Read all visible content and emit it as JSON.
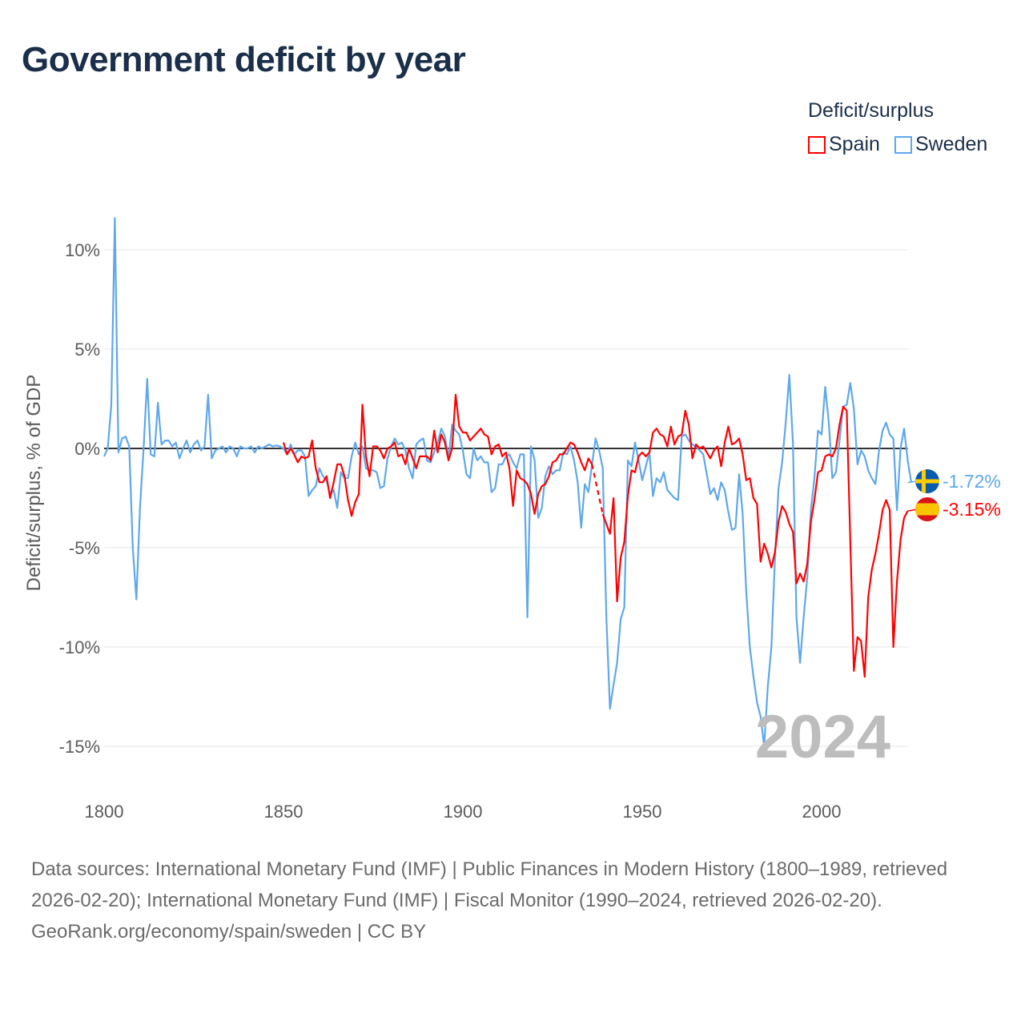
{
  "title": "Government deficit by year",
  "legend": {
    "title": "Deficit/surplus",
    "items": [
      {
        "name": "Spain",
        "color": "#ff0000"
      },
      {
        "name": "Sweden",
        "color": "#5ea8eb"
      }
    ]
  },
  "footer": {
    "sources": "Data sources: International Monetary Fund (IMF) | Public Finances in Modern History (1800–1989, retrieved 2026-02-20); International Monetary Fund (IMF) | Fiscal Monitor (1990–2024, retrieved 2026-02-20).",
    "attribution": "GeoRank.org/economy/spain/sweden | CC BY"
  },
  "chart_data": {
    "type": "line",
    "title": "Government deficit by year",
    "ylabel": "Deficit/surplus, % of GDP",
    "xlabel": "",
    "xlim": [
      1800,
      2024
    ],
    "ylim": [
      -17,
      12
    ],
    "x_ticks": [
      1800,
      1850,
      1900,
      1950,
      2000
    ],
    "x_tick_labels": [
      "1800",
      "1850",
      "1900",
      "1950",
      "2000"
    ],
    "y_ticks": [
      10,
      5,
      0,
      -5,
      -10,
      -15
    ],
    "y_tick_labels": [
      "10%",
      "5%",
      "0%",
      "-5%",
      "-10%",
      "-15%"
    ],
    "grid": true,
    "current_year": "2024",
    "legend_position": "top-right",
    "series": [
      {
        "name": "Sweden",
        "color": "#5ea8eb",
        "end_label": "-1.72%",
        "flag": "sweden-flag",
        "start_year": 1800,
        "values": [
          -0.4,
          0,
          2.2,
          11.6,
          -0.2,
          0.5,
          0.6,
          0.1,
          -5,
          -7.6,
          -3,
          0,
          3.5,
          -0.3,
          -0.4,
          2.3,
          0.2,
          0.4,
          0.4,
          0.1,
          0.3,
          -0.5,
          0,
          0.4,
          -0.2,
          0.2,
          0.4,
          -0.1,
          0.1,
          2.7,
          -0.5,
          -0.1,
          0,
          0.1,
          -0.2,
          0.1,
          0,
          -0.4,
          0.1,
          0,
          0,
          0.1,
          -0.2,
          0.1,
          0,
          0.1,
          0.2,
          0.1,
          0.15,
          0.1,
          0,
          -0.3,
          0.2,
          -0.3,
          -0.1,
          -0.1,
          -0.4,
          -2.4,
          -2.1,
          -1.9,
          -1.0,
          -1.4,
          -1.6,
          -2.3,
          -2.1,
          -3.0,
          -1.2,
          -1.5,
          -1.5,
          -0.4,
          0.3,
          -0.3,
          0.1,
          -1.0,
          -1.1,
          -1.1,
          -1.2,
          -2.0,
          -1.9,
          -0.5,
          0.1,
          0.5,
          0.2,
          0.3,
          -0.1,
          -1.0,
          -1.5,
          0.2,
          0.4,
          0.5,
          -0.6,
          -0.7,
          -0.2,
          0.3,
          1.0,
          0.6,
          -0.5,
          1.2,
          0.9,
          0.7,
          -0.1,
          -1.3,
          -1.5,
          0,
          -0.6,
          -0.4,
          -0.7,
          -0.7,
          -2.2,
          -2.0,
          -0.8,
          -0.8,
          -0.4,
          -0.3,
          -0.7,
          -1.0,
          -0.3,
          -0.3,
          -8.5,
          0.1,
          -0.6,
          -3.5,
          -3.0,
          -1.4,
          -0.9,
          -1.3,
          -1.1,
          -1.1,
          -0.2,
          -0.3,
          0.1,
          -0.6,
          -1.7,
          -4.0,
          -1.8,
          -2.2,
          -0.8,
          0.5,
          -0.1,
          -1.0,
          -8.5,
          -13.1,
          -11.9,
          -10.8,
          -8.6,
          -8.0,
          -0.6,
          -0.9,
          0.3,
          -0.6,
          -1.6,
          -0.9,
          -0.2,
          -2.4,
          -1.5,
          -1.7,
          -1.2,
          -2.1,
          -2.3,
          -2.5,
          -2.6,
          0.6,
          0.7,
          0.4,
          0.2,
          0.1,
          -0.1,
          -0.3,
          -1.3,
          -2.3,
          -2.0,
          -2.6,
          -1.7,
          -2.1,
          -3.2,
          -4.1,
          -4.0,
          -1.3,
          -3.3,
          -7.2,
          -10.0,
          -11.5,
          -12.8,
          -13.5,
          -15.0,
          -12.0,
          -10.0,
          -5.5,
          -2.0,
          -0.7,
          1.3,
          3.7,
          0.3,
          -8.5,
          -10.8,
          -8.5,
          -6.5,
          -3.1,
          -1.5,
          0.9,
          0.7,
          3.1,
          1.3,
          -1.5,
          -1.2,
          0.4,
          2.1,
          2.2,
          3.3,
          2.0,
          -0.8,
          -0.1,
          -0.4,
          -1.1,
          -1.5,
          -1.8,
          -0.1,
          0.9,
          1.3,
          0.7,
          0.5,
          -3.1,
          0,
          1.0,
          -0.6,
          -1.72
        ]
      },
      {
        "name": "Spain",
        "color": "#ff0000",
        "end_label": "-3.15%",
        "flag": "spain-flag",
        "start_year": 1850,
        "missing_years_dashed": [
          1937,
          1938
        ],
        "values": [
          0.3,
          -0.3,
          0,
          -0.3,
          -0.7,
          -0.4,
          -0.5,
          -0.4,
          0.4,
          -1.0,
          -1.7,
          -1.7,
          -1.4,
          -2.5,
          -1.7,
          -0.8,
          -0.8,
          -1.4,
          -2.6,
          -3.4,
          -2.7,
          -2.3,
          2.2,
          -0.4,
          -1.4,
          0.1,
          0.1,
          -0.1,
          -0.5,
          0,
          0.1,
          0.3,
          -0.4,
          -0.3,
          -0.8,
          0,
          -0.5,
          -1.0,
          -0.4,
          -0.4,
          -0.4,
          -0.6,
          0.9,
          -0.2,
          0.7,
          0.3,
          -0.6,
          0,
          2.7,
          1.1,
          0.8,
          0.8,
          0.4,
          0.6,
          0.8,
          1.0,
          0.7,
          0.6,
          -0.3,
          0.1,
          0.2,
          -0.4,
          -0.2,
          -1.0,
          -2.9,
          -1.1,
          -1.5,
          -1.6,
          -1.8,
          -2.3,
          -3.3,
          -2.3,
          -1.9,
          -1.8,
          -1.4,
          -0.7,
          -0.6,
          -0.3,
          -0.3,
          0,
          0.3,
          0.2,
          -0.2,
          -0.7,
          -1.1,
          -0.5,
          -0.8,
          null,
          null,
          -3.3,
          -3.8,
          -4.3,
          -2.5,
          -7.7,
          -5.5,
          -4.7,
          -2.4,
          -1.1,
          -1.2,
          -0.4,
          -0.2,
          -0.4,
          -0.2,
          0.8,
          1.0,
          0.7,
          0.6,
          0.1,
          1.1,
          0.2,
          0.6,
          0.7,
          1.9,
          1.2,
          -0.5,
          0.2,
          0,
          0.1,
          -0.2,
          -0.5,
          -0.1,
          0.1,
          -0.9,
          0.3,
          1.1,
          0.2,
          0.3,
          0.5,
          -0.3,
          -1.6,
          -1.5,
          -2.5,
          -2.8,
          -5.7,
          -4.8,
          -5.3,
          -6.0,
          -5.2,
          -3.7,
          -2.9,
          -3.2,
          -3.8,
          -4.2,
          -6.8,
          -6.3,
          -6.7,
          -5.8,
          -3.7,
          -2.6,
          -1.2,
          -1.1,
          -0.4,
          -0.3,
          -0.4,
          0,
          1.2,
          2.1,
          1.9,
          -4.6,
          -11.2,
          -9.5,
          -9.7,
          -11.5,
          -7.5,
          -6.1,
          -5.3,
          -4.3,
          -3.1,
          -2.6,
          -3.1,
          -10.0,
          -6.7,
          -4.6,
          -3.5,
          -3.15
        ]
      }
    ]
  }
}
